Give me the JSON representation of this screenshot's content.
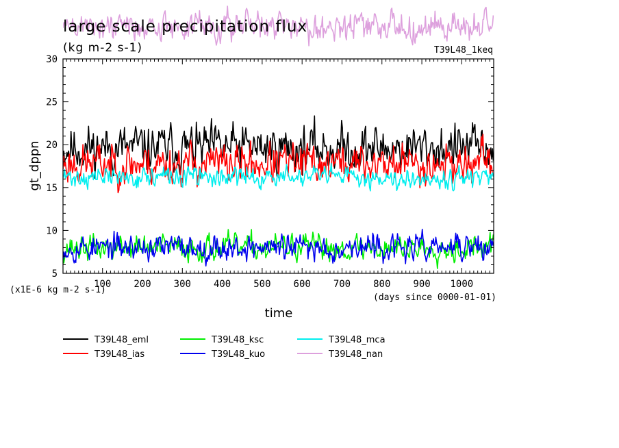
{
  "chart_data": {
    "type": "line",
    "title": "large scale precipitation flux",
    "units": "(kg m-2 s-1)",
    "run_label": "T39L48_1keq",
    "xlabel": "time",
    "ylabel": "gt_dppn",
    "x_unit_note": "(days since 0000-01-01)",
    "y_scale_note": "(x1E-6 kg m-2 s-1)",
    "xlim": [
      1,
      1080
    ],
    "ylim": [
      5,
      30
    ],
    "x_ticks": [
      100,
      200,
      300,
      400,
      500,
      600,
      700,
      800,
      900,
      1000
    ],
    "y_ticks": [
      5,
      10,
      15,
      20,
      25,
      30
    ],
    "grid": false,
    "legend_position": "bottom",
    "series": [
      {
        "name": "T39L48_eml",
        "color": "#000000",
        "mean": 19.6,
        "amp": 1.6,
        "seed": 11
      },
      {
        "name": "T39L48_ias",
        "color": "#ff0000",
        "mean": 17.8,
        "amp": 1.4,
        "seed": 23
      },
      {
        "name": "T39L48_ksc",
        "color": "#00ee00",
        "mean": 8.0,
        "amp": 0.9,
        "seed": 37
      },
      {
        "name": "T39L48_kuo",
        "color": "#0000ee",
        "mean": 8.0,
        "amp": 0.9,
        "seed": 53
      },
      {
        "name": "T39L48_mca",
        "color": "#00eeee",
        "mean": 16.2,
        "amp": 0.7,
        "seed": 71
      },
      {
        "name": "T39L48_nan",
        "color": "#dda0dd",
        "mean": 33.8,
        "amp": 1.0,
        "seed": 89
      }
    ]
  }
}
